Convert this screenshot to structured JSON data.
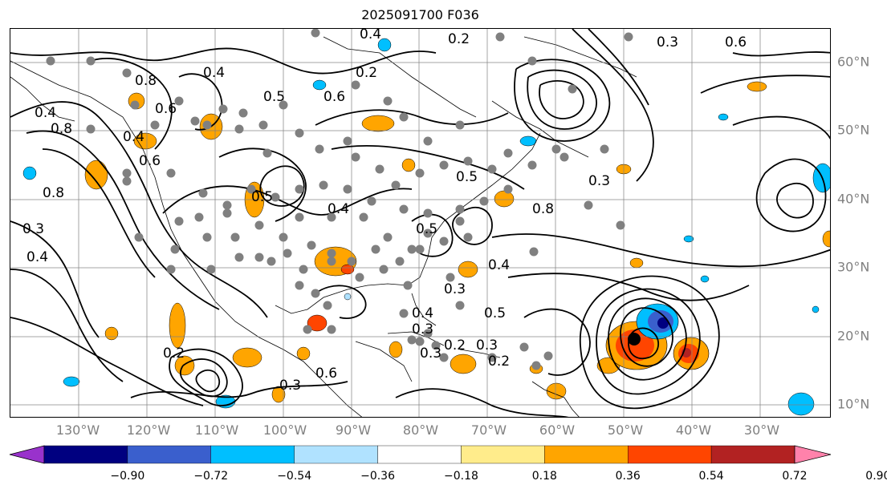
{
  "title": "2025091700 F036",
  "map": {
    "longitude_labels": [
      "130°W",
      "120°W",
      "110°W",
      "100°W",
      "90°W",
      "80°W",
      "70°W",
      "60°W",
      "50°W",
      "40°W",
      "30°W"
    ],
    "latitude_labels": [
      "60°N",
      "50°N",
      "40°N",
      "30°N",
      "20°N",
      "10°N"
    ],
    "contour_labels": [
      "0.4",
      "0.2",
      "0.6",
      "0.3",
      "0.4",
      "0.8",
      "0.4",
      "0.8",
      "0.6",
      "0.5",
      "0.4",
      "0.5",
      "0.6",
      "0.8",
      "0.6",
      "0.3",
      "0.5",
      "0.4",
      "0.5",
      "0.8",
      "0.4",
      "0.3",
      "0.3",
      "0.4",
      "0.2",
      "0.3",
      "0.6",
      "0.5",
      "0.3",
      "0.2",
      "0.3",
      "0.2",
      "0.4",
      "0.3",
      "0.2"
    ],
    "colors": {
      "contour": "#000000",
      "grid": "#808080",
      "coastline": "#000000",
      "marker": "#808080",
      "hurricane_center": "#000000"
    },
    "anomaly_features": "orange/red positive and blue negative shaded patches; hurricane dipole near 20N 50W"
  },
  "colorbar": {
    "tick_labels": [
      "−0.90",
      "−0.72",
      "−0.54",
      "−0.36",
      "−0.18",
      "0.18",
      "0.36",
      "0.54",
      "0.72",
      "0.90"
    ],
    "bin_colors": [
      "#9932cc",
      "#000080",
      "#3a5fcd",
      "#00bfff",
      "#b0e2ff",
      "#ffffff",
      "#ffec8b",
      "#ffa500",
      "#ff4500",
      "#b22222",
      "#ff82ab"
    ]
  }
}
